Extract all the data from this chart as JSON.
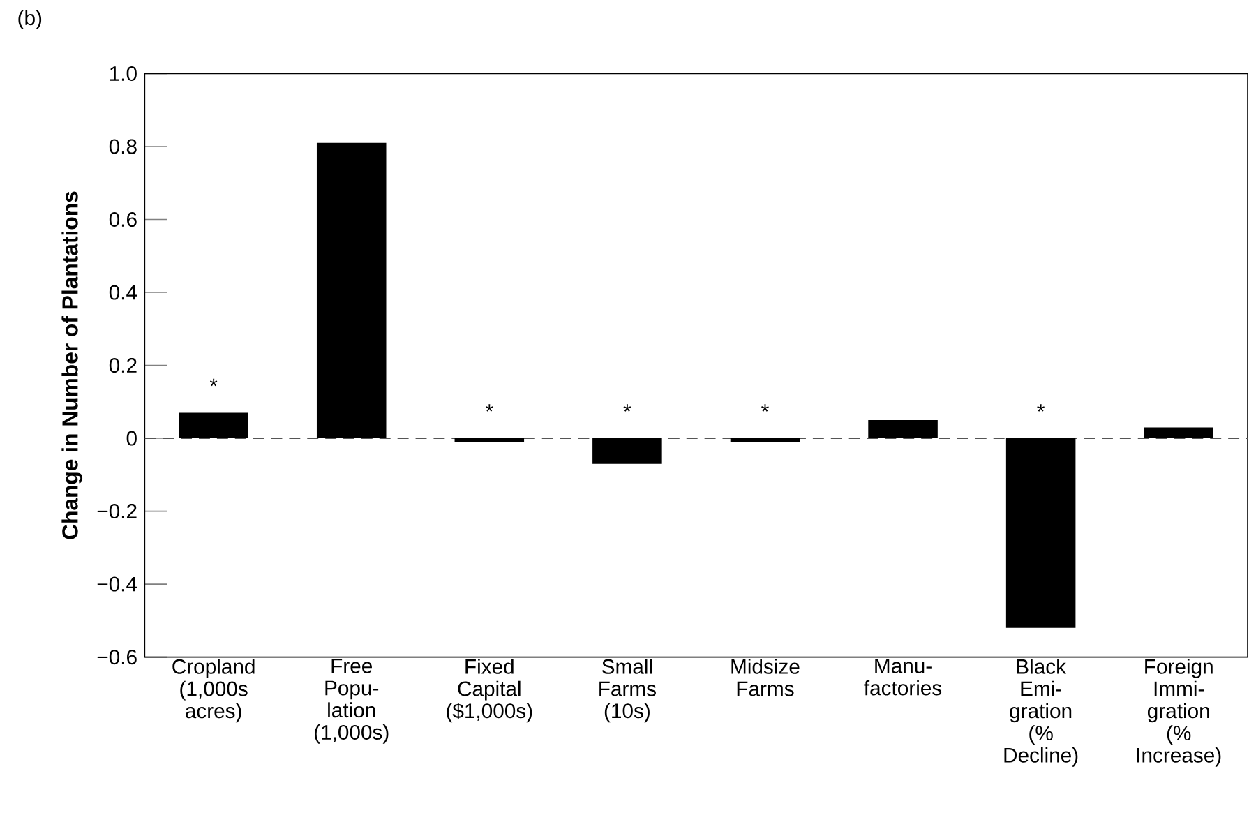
{
  "chart_data": {
    "type": "bar",
    "title": "(b)",
    "ylabel": "Change in Number of Plantations",
    "categories": [
      "Cropland (1,000s acres)",
      "Free Popu- lation (1,000s)",
      "Fixed Capital ($1,000s)",
      "Small Farms (10s)",
      "Midsize Farms",
      "Manu- factories",
      "Black Emi- gration (% Decline)",
      "Foreign Immi- gration (% Increase)"
    ],
    "values": [
      0.07,
      0.81,
      -0.01,
      -0.07,
      -0.01,
      0.05,
      -0.52,
      0.03
    ],
    "color": "#000000",
    "ylim": [
      -0.6,
      1.0
    ],
    "yticks": [
      {
        "value": -0.6,
        "label": "−0.6"
      },
      {
        "value": -0.4,
        "label": "−0.4"
      },
      {
        "value": -0.2,
        "label": "−0.2"
      },
      {
        "value": 0,
        "label": "0"
      },
      {
        "value": 0.2,
        "label": "0.2"
      },
      {
        "value": 0.4,
        "label": "0.4"
      },
      {
        "value": 0.6,
        "label": "0.6"
      },
      {
        "value": 0.8,
        "label": "0.8"
      },
      {
        "value": 1.0,
        "label": "1.0"
      }
    ],
    "ref_lines": [
      {
        "axis": "y",
        "value": 0,
        "color": "#555555",
        "line_style": "dashed"
      }
    ],
    "value_labels": [
      "*",
      null,
      "*",
      "*",
      "*",
      null,
      "*",
      null
    ],
    "grid": false
  }
}
